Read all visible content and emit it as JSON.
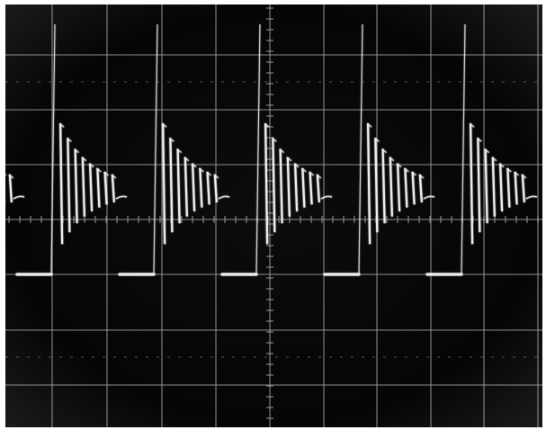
{
  "colors": {
    "screen_background": "#050505",
    "graticule": "#bdbdbd",
    "trace": "#f2f2f2",
    "frame": "#ffffff"
  },
  "graticule": {
    "major_divisions_x": 10,
    "major_divisions_y": 8,
    "has_center_crosshair_ticks": true
  },
  "waveform": {
    "description_type": "repeating damped ringing bursts with flat baseline segments",
    "visible_bursts": 5,
    "ringing_cycles_per_burst": 8
  }
}
